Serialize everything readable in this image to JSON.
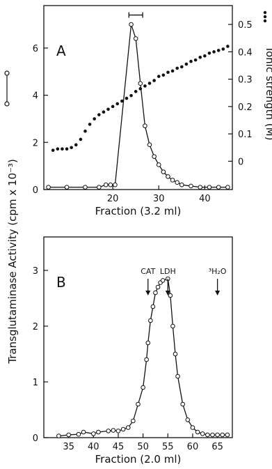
{
  "y_axis_title": "Transglutaminase Activity  (cpm x 10⁻³)",
  "chart_data": [
    {
      "type": "line",
      "panel_label": "A",
      "xlabel": "Fraction (3.2 ml)",
      "ylabel": "Transglutaminase Activity (cpm x 10⁻³)",
      "xlim": [
        5,
        46
      ],
      "ylim": [
        0,
        7.8
      ],
      "x_ticks": [
        20,
        30,
        40
      ],
      "y_ticks": [
        0,
        2,
        4,
        6
      ],
      "grid": false,
      "series": [
        {
          "values": [
            [
              6,
              0.1
            ],
            [
              10,
              0.1
            ],
            [
              14,
              0.1
            ],
            [
              17,
              0.1
            ],
            [
              18.5,
              0.2
            ],
            [
              19.5,
              0.2
            ],
            [
              20.5,
              0.2
            ],
            [
              24,
              7.0
            ],
            [
              25,
              6.4
            ],
            [
              26,
              4.5
            ],
            [
              27,
              2.7
            ],
            [
              28,
              1.9
            ],
            [
              29,
              1.4
            ],
            [
              30,
              1.05
            ],
            [
              31,
              0.75
            ],
            [
              32,
              0.55
            ],
            [
              33,
              0.4
            ],
            [
              34,
              0.3
            ],
            [
              35,
              0.2
            ],
            [
              37,
              0.15
            ],
            [
              39,
              0.1
            ],
            [
              41,
              0.1
            ],
            [
              43,
              0.1
            ],
            [
              45,
              0.1
            ]
          ]
        }
      ],
      "ionic_strength": {
        "ylabel": "Ionic strength (M)",
        "y_ticks": [
          0,
          0.1,
          0.2,
          0.3,
          0.4,
          0.5
        ],
        "y_tick_labels": [
          "0",
          "0.1",
          "0.2",
          "0.3",
          "0.4",
          "0.5"
        ],
        "values": [
          [
            7,
            0.04
          ],
          [
            8,
            0.045
          ],
          [
            9,
            0.045
          ],
          [
            10,
            0.045
          ],
          [
            11,
            0.05
          ],
          [
            12,
            0.06
          ],
          [
            13,
            0.08
          ],
          [
            14,
            0.11
          ],
          [
            15,
            0.135
          ],
          [
            16,
            0.155
          ],
          [
            17,
            0.17
          ],
          [
            18,
            0.18
          ],
          [
            19,
            0.19
          ],
          [
            20,
            0.2
          ],
          [
            21,
            0.21
          ],
          [
            22,
            0.22
          ],
          [
            23,
            0.23
          ],
          [
            24,
            0.24
          ],
          [
            25,
            0.255
          ],
          [
            26,
            0.265
          ],
          [
            27,
            0.275
          ],
          [
            28,
            0.285
          ],
          [
            29,
            0.295
          ],
          [
            30,
            0.31
          ],
          [
            31,
            0.315
          ],
          [
            32,
            0.325
          ],
          [
            33,
            0.33
          ],
          [
            34,
            0.34
          ],
          [
            35,
            0.345
          ],
          [
            36,
            0.355
          ],
          [
            37,
            0.365
          ],
          [
            38,
            0.37
          ],
          [
            39,
            0.38
          ],
          [
            40,
            0.385
          ],
          [
            41,
            0.395
          ],
          [
            42,
            0.4
          ],
          [
            43,
            0.405
          ],
          [
            44,
            0.41
          ],
          [
            45,
            0.42
          ]
        ]
      },
      "bracket": {
        "from": 23.5,
        "to": 26.5,
        "y": 7.4
      }
    },
    {
      "type": "line",
      "panel_label": "B",
      "xlabel": "Fraction (2.0 ml)",
      "ylabel": "Transglutaminase Activity (cpm x 10⁻³)",
      "xlim": [
        30,
        68
      ],
      "ylim": [
        0,
        3.6
      ],
      "x_ticks": [
        35,
        40,
        45,
        50,
        55,
        60,
        65
      ],
      "y_ticks": [
        0,
        1,
        2,
        3
      ],
      "grid": false,
      "series": [
        {
          "values": [
            [
              33,
              0.03
            ],
            [
              35,
              0.05
            ],
            [
              37,
              0.06
            ],
            [
              38,
              0.1
            ],
            [
              40,
              0.07
            ],
            [
              41,
              0.1
            ],
            [
              43,
              0.12
            ],
            [
              44,
              0.13
            ],
            [
              45,
              0.12
            ],
            [
              46,
              0.15
            ],
            [
              47,
              0.18
            ],
            [
              48,
              0.3
            ],
            [
              49,
              0.6
            ],
            [
              50,
              0.9
            ],
            [
              50.7,
              1.4
            ],
            [
              51,
              1.7
            ],
            [
              51.5,
              2.1
            ],
            [
              52,
              2.35
            ],
            [
              52.5,
              2.6
            ],
            [
              53,
              2.7
            ],
            [
              53.5,
              2.78
            ],
            [
              54,
              2.82
            ],
            [
              55,
              2.85
            ],
            [
              55.5,
              2.55
            ],
            [
              56,
              2.0
            ],
            [
              56.5,
              1.5
            ],
            [
              57,
              1.1
            ],
            [
              58,
              0.6
            ],
            [
              59,
              0.32
            ],
            [
              60,
              0.18
            ],
            [
              61,
              0.1
            ],
            [
              62,
              0.07
            ],
            [
              63,
              0.05
            ],
            [
              64,
              0.05
            ],
            [
              65,
              0.05
            ],
            [
              66,
              0.05
            ],
            [
              67,
              0.05
            ]
          ]
        }
      ],
      "markers": [
        {
          "label": "CAT",
          "x": 51
        },
        {
          "label": "LDH",
          "x": 55
        },
        {
          "label": "³H₂O",
          "x": 65
        }
      ]
    }
  ]
}
